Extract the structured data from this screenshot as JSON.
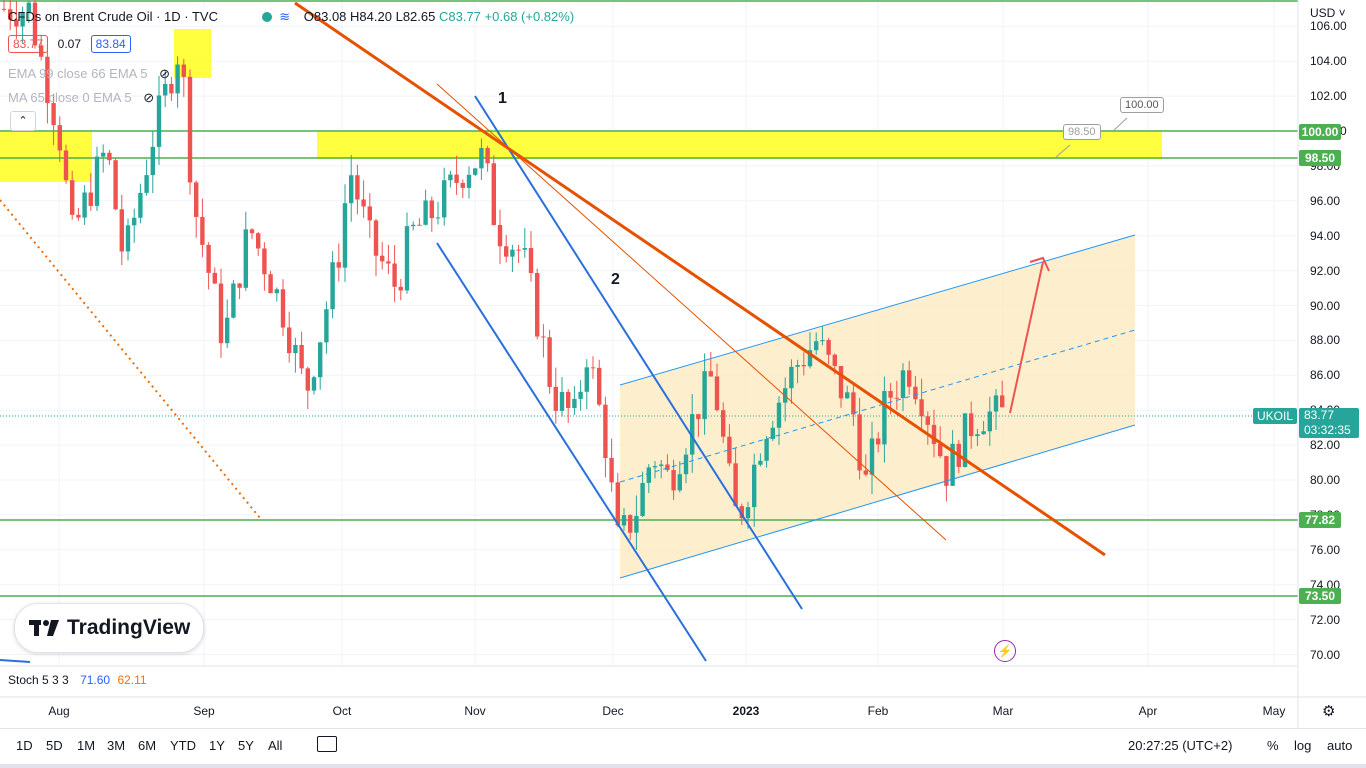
{
  "header": {
    "symbol_title": "CFDs on Brent Crude Oil · 1D · TVC",
    "open": "O83.08",
    "high": "H84.20",
    "low": "L82.65",
    "close": "C83.77",
    "change": "+0.68 (+0.82%)",
    "bid": "83.77",
    "spread": "0.07",
    "ask": "83.84"
  },
  "indicators": {
    "ema": "EMA 99 close 66 EMA 5",
    "ma": "MA 65 close 0 EMA 5",
    "stoch_label": "Stoch 5 3 3",
    "stoch_k": "71.60",
    "stoch_d": "62.11"
  },
  "currency": "USD",
  "annotations": {
    "line1_label": "1",
    "line2_label": "2",
    "callout_high": "100.00",
    "callout_low": "98.50"
  },
  "price_tags": {
    "level_100": "100.00",
    "level_98_5": "98.50",
    "symbol": "UKOIL",
    "last": "83.77",
    "countdown": "03:32:35",
    "level_77_82": "77.82",
    "level_73_5": "73.50"
  },
  "logo": {
    "text": "TradingView"
  },
  "timeframes": [
    "1D",
    "5D",
    "1M",
    "3M",
    "6M",
    "YTD",
    "1Y",
    "5Y",
    "All"
  ],
  "footer": {
    "clock": "20:27:25 (UTC+2)",
    "percent": "%",
    "log": "log",
    "auto": "auto"
  },
  "colors": {
    "up": "#26a69a",
    "down": "#ef5350",
    "zone_yellow": "#ffff00",
    "channel_fill": "#fdebc0",
    "trend_orange": "#e65100",
    "channel_blue": "#2196f3",
    "level_green": "#4caf50",
    "ukoil_tag": "#26a69a"
  },
  "chart_data": {
    "type": "candlestick",
    "title": "CFDs on Brent Crude Oil · 1D · TVC",
    "y_axis": {
      "min": 69,
      "max": 107,
      "ticks": [
        106.0,
        104.0,
        102.0,
        100.0,
        98.0,
        96.0,
        94.0,
        92.0,
        90.0,
        88.0,
        86.0,
        84.0,
        82.0,
        80.0,
        78.0,
        76.0,
        74.0,
        72.0,
        70.0
      ],
      "tick_labels": [
        "106.00",
        "104.00",
        "102.00",
        "100.00",
        "98.00",
        "96.00",
        "94.00",
        "92.00",
        "90.00",
        "88.00",
        "86.00",
        "84.00",
        "82.00",
        "80.00",
        "78.00",
        "76.00",
        "74.00",
        "72.00",
        "70.00"
      ]
    },
    "x_axis": {
      "labels": [
        "Aug",
        "Sep",
        "Oct",
        "Nov",
        "Dec",
        "2023",
        "Feb",
        "Mar",
        "Apr",
        "May"
      ]
    },
    "horizontal_levels": [
      {
        "value": 100.0,
        "color": "green"
      },
      {
        "value": 98.5,
        "color": "green"
      },
      {
        "value": 77.82,
        "color": "green"
      },
      {
        "value": 73.5,
        "color": "green"
      }
    ],
    "last_price": 83.77,
    "candle_waypoints": [
      [
        "Jul 25",
        107.0
      ],
      [
        "Aug 1",
        100.0
      ],
      [
        "Aug 4",
        94.0
      ],
      [
        "Aug 12",
        99.0
      ],
      [
        "Aug 16",
        92.5
      ],
      [
        "Aug 23",
        100.0
      ],
      [
        "Aug 29",
        105.0
      ],
      [
        "Sep 1",
        96.0
      ],
      [
        "Sep 8",
        88.0
      ],
      [
        "Sep 14",
        94.5
      ],
      [
        "Sep 19",
        91.5
      ],
      [
        "Sep 22",
        89.5
      ],
      [
        "Sep 27",
        85.0
      ],
      [
        "Sep 30",
        88.0
      ],
      [
        "Oct 5",
        93.5
      ],
      [
        "Oct 7",
        98.0
      ],
      [
        "Oct 12",
        93.5
      ],
      [
        "Oct 18",
        91.0
      ],
      [
        "Oct 21",
        94.0
      ],
      [
        "Oct 27",
        95.5
      ],
      [
        "Nov 3",
        98.0
      ],
      [
        "Nov 7",
        98.5
      ],
      [
        "Nov 10",
        94.5
      ],
      [
        "Nov 16",
        93.0
      ],
      [
        "Nov 21",
        87.5
      ],
      [
        "Nov 23",
        85.0
      ],
      [
        "Nov 28",
        83.5
      ],
      [
        "Dec 1",
        87.5
      ],
      [
        "Dec 5",
        82.5
      ],
      [
        "Dec 8",
        76.5
      ],
      [
        "Dec 12",
        78.0
      ],
      [
        "Dec 16",
        81.5
      ],
      [
        "Dec 20",
        80.0
      ],
      [
        "Dec 27",
        84.5
      ],
      [
        "Dec 30",
        86.0
      ],
      [
        "Jan 4",
        78.0
      ],
      [
        "Jan 6",
        78.5
      ],
      [
        "Jan 11",
        83.0
      ],
      [
        "Jan 18",
        86.5
      ],
      [
        "Jan 23",
        88.0
      ],
      [
        "Jan 26",
        86.5
      ],
      [
        "Feb 1",
        83.5
      ],
      [
        "Feb 3",
        79.5
      ],
      [
        "Feb 8",
        84.5
      ],
      [
        "Feb 13",
        86.5
      ],
      [
        "Feb 16",
        85.0
      ],
      [
        "Feb 22",
        80.5
      ],
      [
        "Feb 27",
        83.0
      ],
      [
        "Mar 2",
        83.77
      ]
    ],
    "stochastic": {
      "k": 71.6,
      "d": 62.11
    }
  }
}
